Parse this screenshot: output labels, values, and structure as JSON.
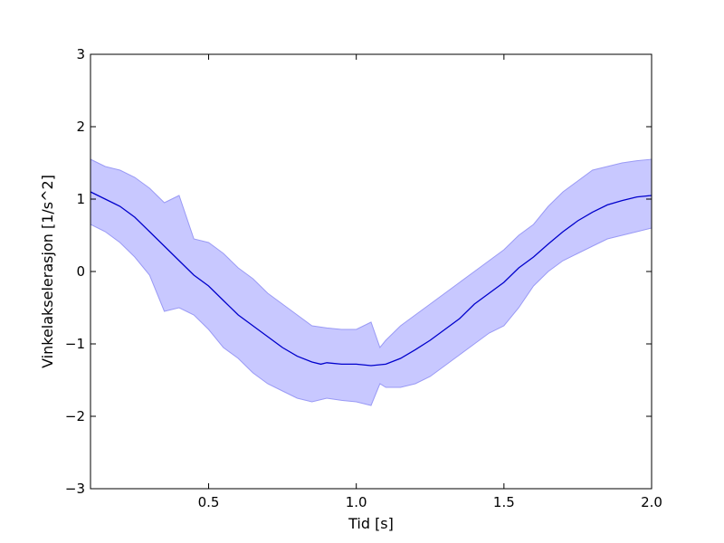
{
  "chart_data": {
    "type": "line",
    "title": "",
    "xlabel": "Tid [s]",
    "ylabel": "Vinkelakselerasjon [1/s^2]",
    "xlim": [
      0.1,
      2.0
    ],
    "ylim": [
      -3,
      3
    ],
    "xticks": [
      0.5,
      1.0,
      1.5,
      2.0
    ],
    "xtick_labels": [
      "0.5",
      "1.0",
      "1.5",
      "2.0"
    ],
    "yticks": [
      -3,
      -2,
      -1,
      0,
      1,
      2,
      3
    ],
    "ytick_labels": [
      "−3",
      "−2",
      "−1",
      "0",
      "1",
      "2",
      "3"
    ],
    "grid": false,
    "colors": {
      "line": "#0000cc",
      "band_fill": "#c8c8ff",
      "band_edge": "#9a9af5"
    },
    "series": [
      {
        "x": [
          0.1,
          0.15,
          0.2,
          0.25,
          0.3,
          0.35,
          0.4,
          0.45,
          0.5,
          0.55,
          0.6,
          0.65,
          0.7,
          0.75,
          0.8,
          0.85,
          0.88,
          0.9,
          0.95,
          1.0,
          1.05,
          1.1,
          1.15,
          1.2,
          1.25,
          1.3,
          1.35,
          1.4,
          1.45,
          1.5,
          1.55,
          1.6,
          1.65,
          1.7,
          1.75,
          1.8,
          1.85,
          1.9,
          1.95,
          2.0
        ],
        "y": [
          1.1,
          1.0,
          0.9,
          0.75,
          0.55,
          0.35,
          0.15,
          -0.05,
          -0.2,
          -0.4,
          -0.6,
          -0.75,
          -0.9,
          -1.05,
          -1.17,
          -1.25,
          -1.28,
          -1.26,
          -1.28,
          -1.28,
          -1.3,
          -1.28,
          -1.2,
          -1.08,
          -0.95,
          -0.8,
          -0.65,
          -0.45,
          -0.3,
          -0.15,
          0.05,
          0.2,
          0.38,
          0.55,
          0.7,
          0.82,
          0.92,
          0.98,
          1.03,
          1.05
        ]
      }
    ],
    "band": {
      "x": [
        0.1,
        0.15,
        0.2,
        0.25,
        0.3,
        0.35,
        0.4,
        0.45,
        0.5,
        0.55,
        0.6,
        0.65,
        0.7,
        0.75,
        0.8,
        0.85,
        0.9,
        0.95,
        1.0,
        1.05,
        1.08,
        1.1,
        1.15,
        1.2,
        1.25,
        1.3,
        1.35,
        1.4,
        1.45,
        1.5,
        1.55,
        1.6,
        1.65,
        1.7,
        1.75,
        1.8,
        1.85,
        1.9,
        1.95,
        2.0
      ],
      "upper": [
        1.55,
        1.45,
        1.4,
        1.3,
        1.15,
        0.95,
        1.05,
        0.45,
        0.4,
        0.25,
        0.05,
        -0.1,
        -0.3,
        -0.45,
        -0.6,
        -0.75,
        -0.78,
        -0.8,
        -0.8,
        -0.7,
        -1.05,
        -0.95,
        -0.75,
        -0.6,
        -0.45,
        -0.3,
        -0.15,
        0.0,
        0.15,
        0.3,
        0.5,
        0.65,
        0.9,
        1.1,
        1.25,
        1.4,
        1.45,
        1.5,
        1.53,
        1.55
      ],
      "lower": [
        0.65,
        0.55,
        0.4,
        0.2,
        -0.05,
        -0.55,
        -0.5,
        -0.6,
        -0.8,
        -1.05,
        -1.2,
        -1.4,
        -1.55,
        -1.65,
        -1.75,
        -1.8,
        -1.75,
        -1.78,
        -1.8,
        -1.85,
        -1.55,
        -1.6,
        -1.6,
        -1.55,
        -1.45,
        -1.3,
        -1.15,
        -1.0,
        -0.85,
        -0.75,
        -0.5,
        -0.2,
        0.0,
        0.15,
        0.25,
        0.35,
        0.45,
        0.5,
        0.55,
        0.6
      ]
    }
  }
}
